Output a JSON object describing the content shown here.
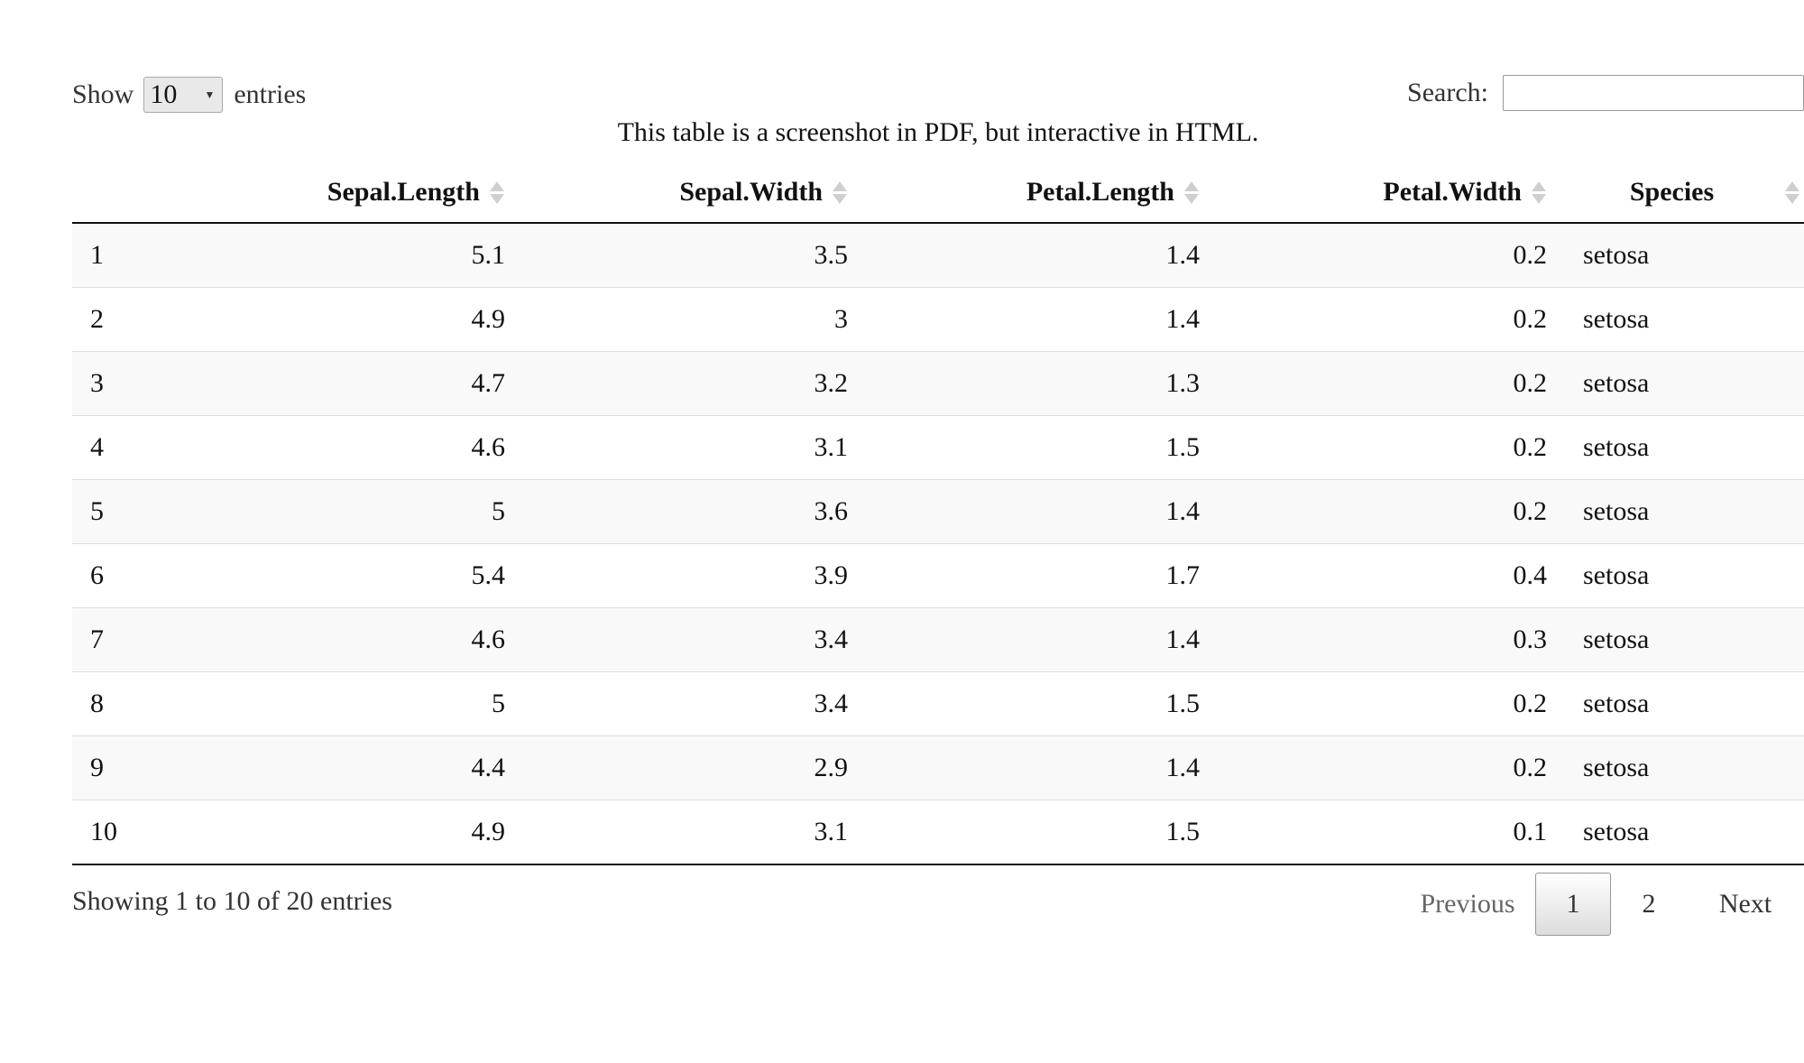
{
  "controls": {
    "show_label": "Show",
    "length_value": "10",
    "entries_label": "entries",
    "search_label": "Search:",
    "search_value": "",
    "search_placeholder": ""
  },
  "caption": "This table is a screenshot in PDF, but interactive in HTML.",
  "table": {
    "columns": [
      "",
      "Sepal.Length",
      "Sepal.Width",
      "Petal.Length",
      "Petal.Width",
      "Species"
    ],
    "rows": [
      [
        "1",
        "5.1",
        "3.5",
        "1.4",
        "0.2",
        "setosa"
      ],
      [
        "2",
        "4.9",
        "3",
        "1.4",
        "0.2",
        "setosa"
      ],
      [
        "3",
        "4.7",
        "3.2",
        "1.3",
        "0.2",
        "setosa"
      ],
      [
        "4",
        "4.6",
        "3.1",
        "1.5",
        "0.2",
        "setosa"
      ],
      [
        "5",
        "5",
        "3.6",
        "1.4",
        "0.2",
        "setosa"
      ],
      [
        "6",
        "5.4",
        "3.9",
        "1.7",
        "0.4",
        "setosa"
      ],
      [
        "7",
        "4.6",
        "3.4",
        "1.4",
        "0.3",
        "setosa"
      ],
      [
        "8",
        "5",
        "3.4",
        "1.5",
        "0.2",
        "setosa"
      ],
      [
        "9",
        "4.4",
        "2.9",
        "1.4",
        "0.2",
        "setosa"
      ],
      [
        "10",
        "4.9",
        "3.1",
        "1.5",
        "0.1",
        "setosa"
      ]
    ]
  },
  "info": "Showing 1 to 10 of 20 entries",
  "pagination": {
    "previous": "Previous",
    "pages": [
      "1",
      "2"
    ],
    "current_page": "1",
    "next": "Next"
  },
  "icons": {
    "sort": "sort-both-icon",
    "select_caret": "caret-down-icon"
  },
  "colors": {
    "header_border": "#111111",
    "row_stripe": "#f9f9f9",
    "row_divider": "#dddddd",
    "sort_icon": "#cfcfcf"
  }
}
